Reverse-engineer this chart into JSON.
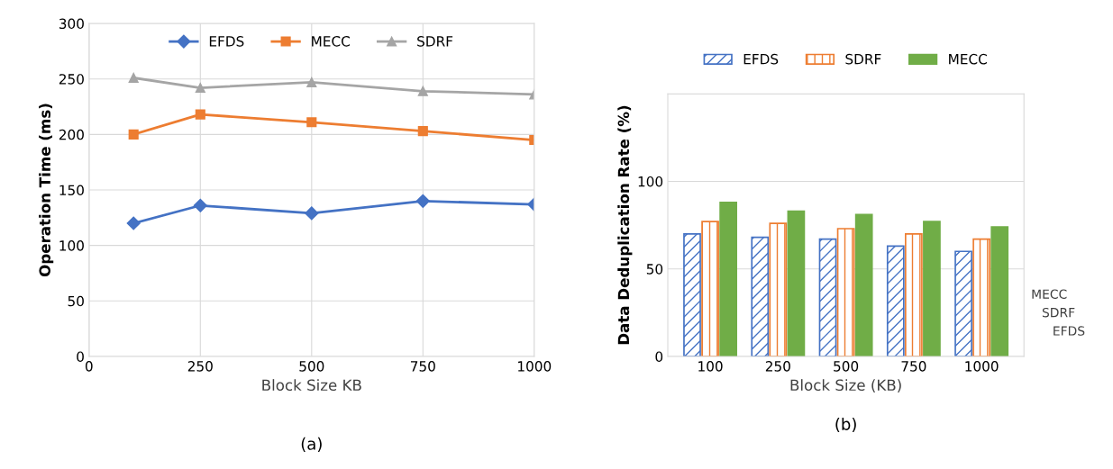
{
  "chart_data": [
    {
      "type": "line",
      "xlabel": "Block Size KB",
      "ylabel": "Operation Time (ms)",
      "x": [
        100,
        250,
        500,
        750,
        1000
      ],
      "xlim": [
        0,
        1000
      ],
      "xticks": [
        0,
        250,
        500,
        750,
        1000
      ],
      "ylim": [
        0,
        300
      ],
      "yticks": [
        0,
        50,
        100,
        150,
        200,
        250,
        300
      ],
      "grid": true,
      "legend": "top",
      "annotations": [
        "(a)"
      ],
      "series": [
        {
          "name": "EFDS",
          "color": "#4472c4",
          "marker": "diamond",
          "values": [
            120,
            136,
            129,
            140,
            137
          ]
        },
        {
          "name": "MECC",
          "color": "#ed7d31",
          "marker": "square",
          "values": [
            200,
            218,
            211,
            203,
            195
          ]
        },
        {
          "name": "SDRF",
          "color": "#a5a5a5",
          "marker": "triangle",
          "values": [
            251,
            242,
            247,
            239,
            236
          ]
        }
      ]
    },
    {
      "type": "bar",
      "xlabel": "Block Size (KB)",
      "ylabel": "Data Deduplication Rate (%)",
      "categories": [
        "100",
        "250",
        "500",
        "750",
        "1000"
      ],
      "ylim": [
        0,
        150
      ],
      "yticks": [
        0,
        50,
        100,
        {
          "value": 150,
          "label": null
        }
      ],
      "grid": "y",
      "legend": "top",
      "annotations": [
        "MECC",
        "SDRF",
        "EFDS",
        "(b)"
      ],
      "series": [
        {
          "name": "EFDS",
          "color": "#4472c4",
          "values": [
            70,
            68,
            67,
            63,
            60
          ]
        },
        {
          "name": "SDRF",
          "color": "#ed7d31",
          "values": [
            77,
            76,
            73,
            70,
            67
          ]
        },
        {
          "name": "MECC",
          "color": "#70ad47",
          "values": [
            88,
            83,
            81,
            77,
            74
          ]
        }
      ]
    }
  ]
}
